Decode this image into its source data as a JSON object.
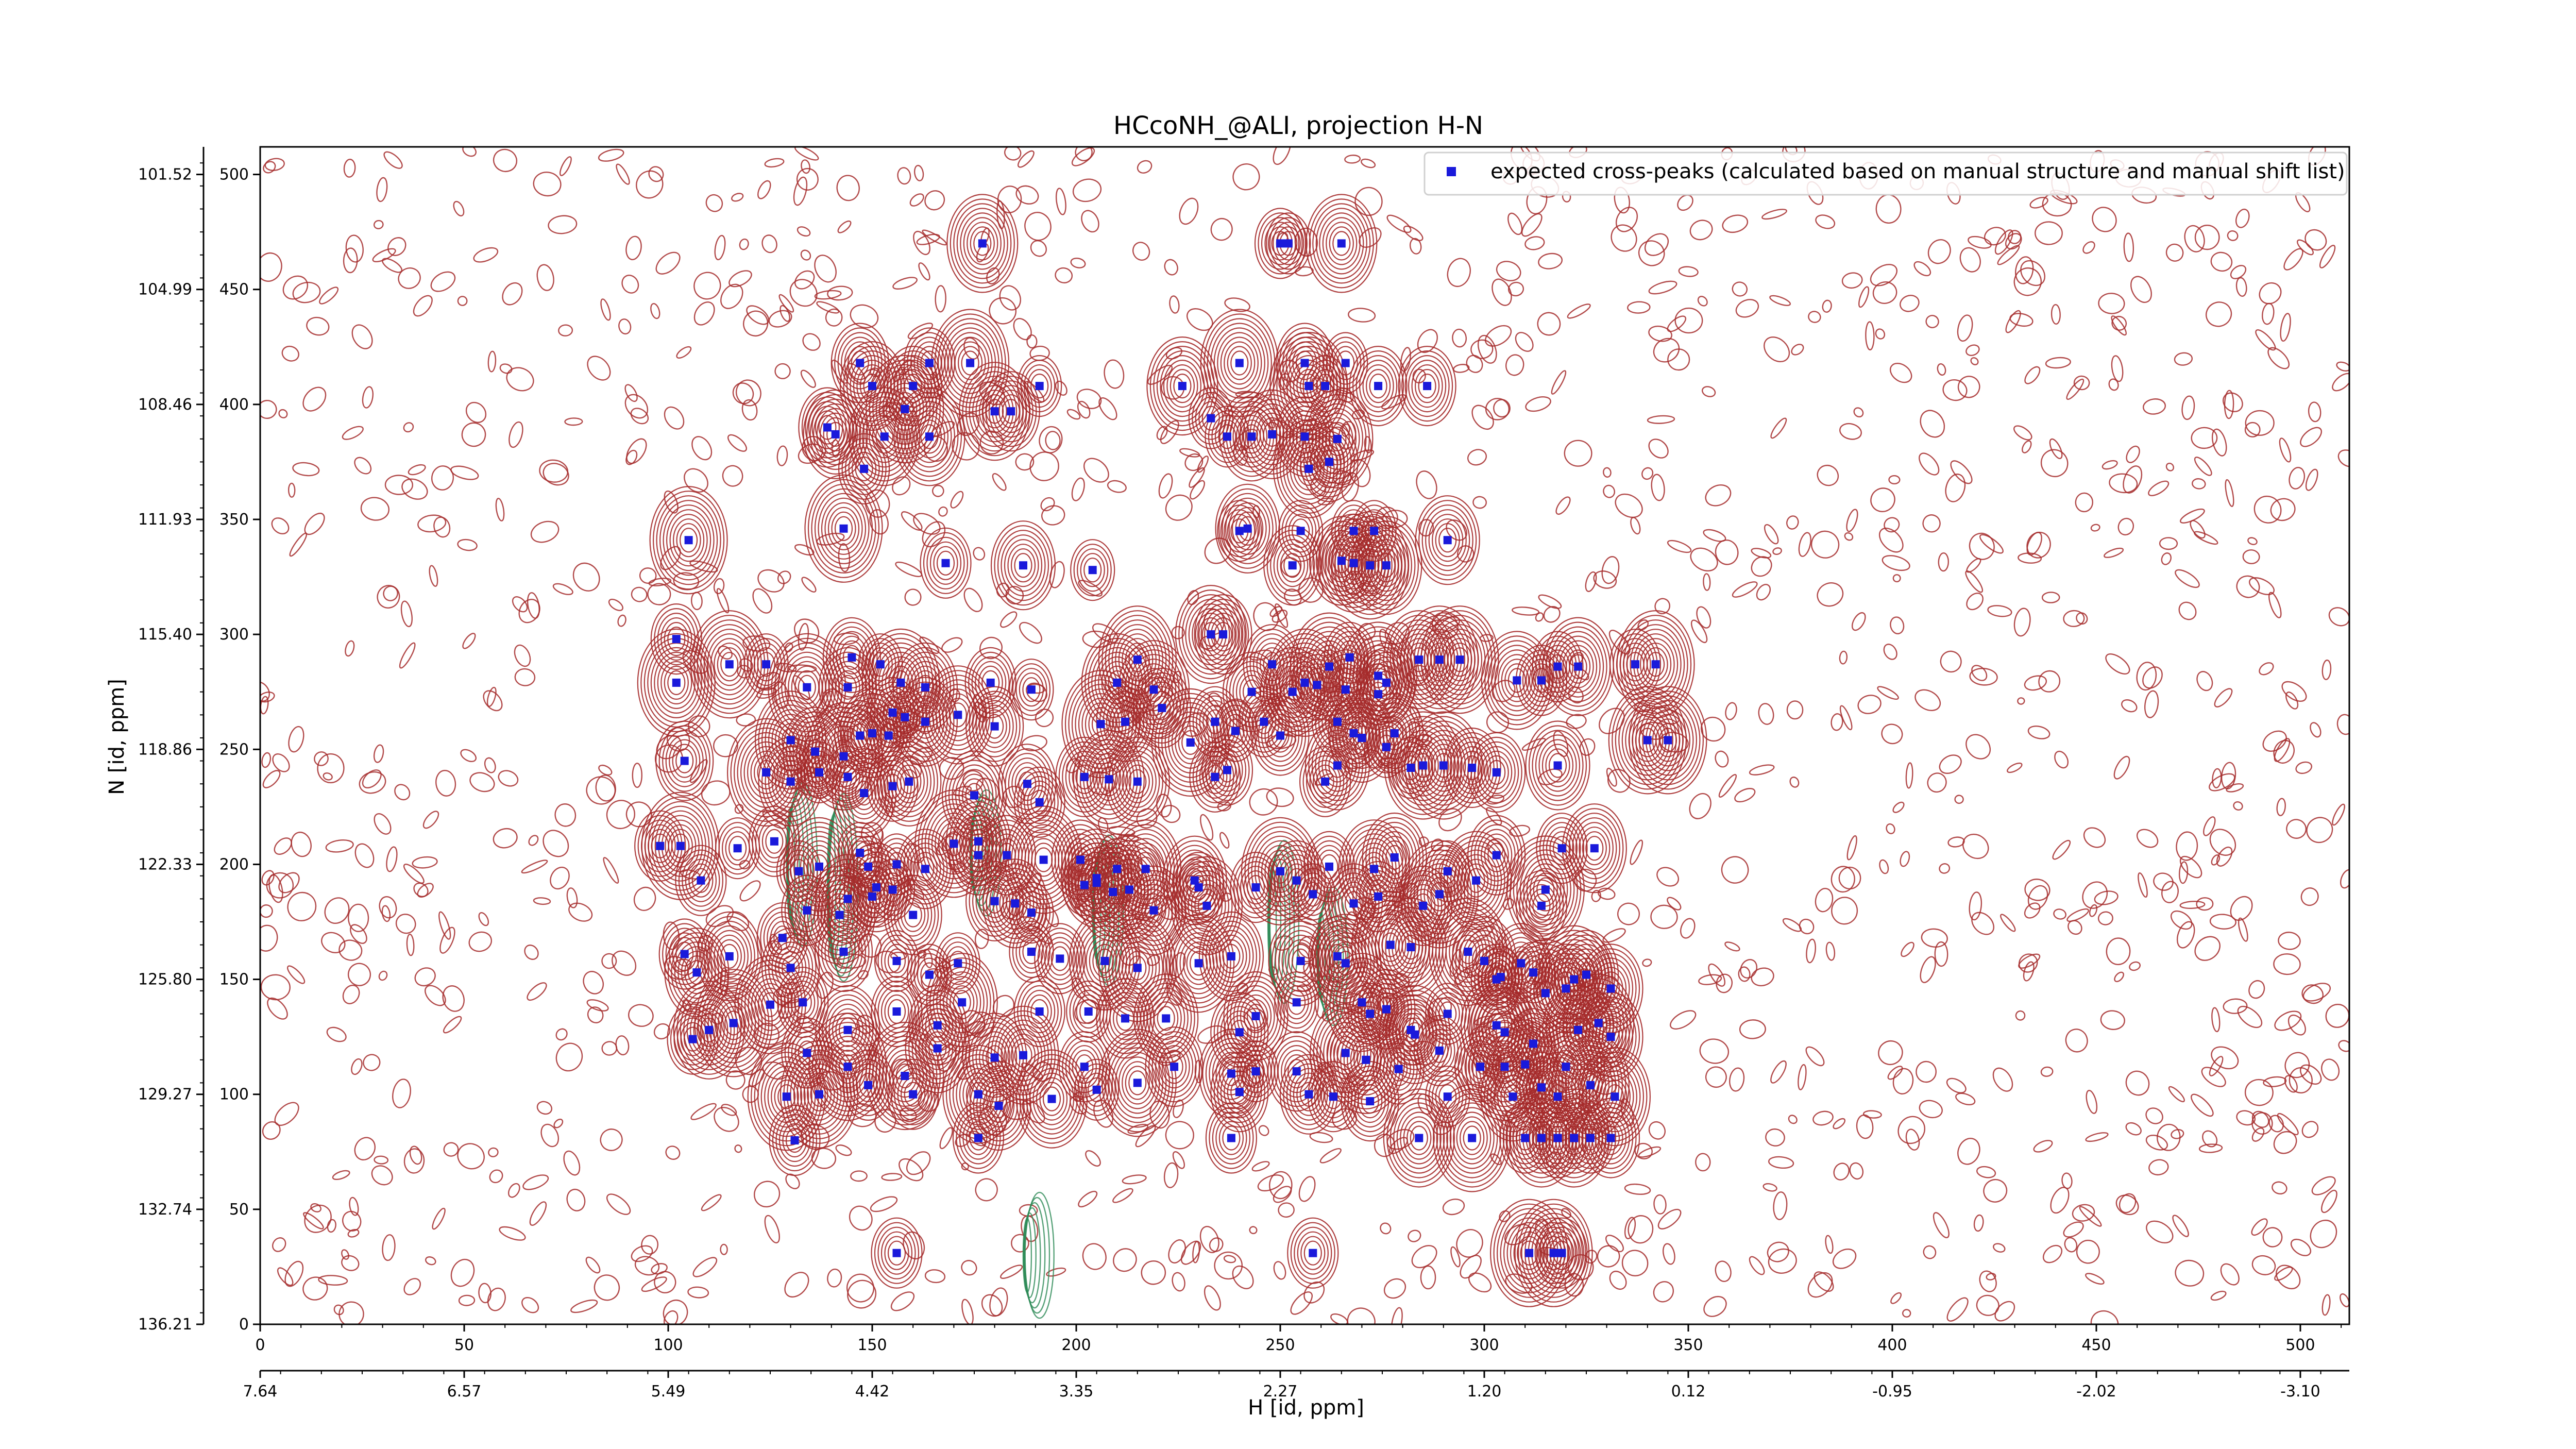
{
  "chart_data": {
    "type": "scatter",
    "title": "HCcoNH_@ALI, projection H-N",
    "xlabel": "H [id, ppm]",
    "ylabel": "N [id, ppm]",
    "xlim": [
      0,
      512
    ],
    "ylim": [
      0,
      512
    ],
    "x_ticks": [
      0,
      50,
      100,
      150,
      200,
      250,
      300,
      350,
      400,
      450,
      500
    ],
    "y_ticks": [
      0,
      50,
      100,
      150,
      200,
      250,
      300,
      350,
      400,
      450,
      500
    ],
    "ppm_x_ticks": [
      "7.64",
      "6.57",
      "5.49",
      "4.42",
      "3.35",
      "2.27",
      "1.20",
      "0.12",
      "-0.95",
      "-2.02",
      "-3.10"
    ],
    "ppm_y_ticks": [
      "136.21",
      "132.74",
      "129.27",
      "125.80",
      "122.33",
      "118.86",
      "115.40",
      "111.93",
      "108.46",
      "104.99",
      "101.52"
    ],
    "ppm_x_positions": [
      0,
      50,
      100,
      150,
      200,
      250,
      300,
      350,
      400,
      450,
      500
    ],
    "ppm_y_positions": [
      0,
      50,
      100,
      150,
      200,
      250,
      300,
      350,
      400,
      450,
      500
    ],
    "legend": {
      "position": "top-right",
      "label": "expected cross-peaks (calculated based on manual structure and manual shift list)",
      "marker_color": "#1a1adb"
    },
    "colors": {
      "positive_contours": "#a52a2a",
      "negative_contours": "#2e8b57",
      "markers": "#1a1adb"
    },
    "grid": false,
    "series": [
      {
        "name": "expected cross-peaks (calculated based on manual structure and manual shift list)",
        "points": [
          [
            177,
            470
          ],
          [
            250,
            470
          ],
          [
            252,
            470
          ],
          [
            265,
            470
          ],
          [
            147,
            418
          ],
          [
            164,
            418
          ],
          [
            174,
            418
          ],
          [
            240,
            418
          ],
          [
            256,
            418
          ],
          [
            266,
            418
          ],
          [
            150,
            408
          ],
          [
            160,
            408
          ],
          [
            191,
            408
          ],
          [
            226,
            408
          ],
          [
            257,
            408
          ],
          [
            261,
            408
          ],
          [
            274,
            408
          ],
          [
            286,
            408
          ],
          [
            158,
            398
          ],
          [
            180,
            397
          ],
          [
            184,
            397
          ],
          [
            233,
            394
          ],
          [
            139,
            390
          ],
          [
            141,
            387
          ],
          [
            153,
            386
          ],
          [
            164,
            386
          ],
          [
            237,
            386
          ],
          [
            243,
            386
          ],
          [
            248,
            387
          ],
          [
            256,
            386
          ],
          [
            264,
            385
          ],
          [
            148,
            372
          ],
          [
            257,
            372
          ],
          [
            262,
            375
          ],
          [
            143,
            346
          ],
          [
            105,
            341
          ],
          [
            168,
            331
          ],
          [
            187,
            330
          ],
          [
            204,
            328
          ],
          [
            253,
            330
          ],
          [
            265,
            332
          ],
          [
            268,
            331
          ],
          [
            272,
            330
          ],
          [
            276,
            330
          ],
          [
            240,
            345
          ],
          [
            242,
            346
          ],
          [
            255,
            345
          ],
          [
            268,
            345
          ],
          [
            273,
            345
          ],
          [
            291,
            341
          ],
          [
            233,
            300
          ],
          [
            236,
            300
          ],
          [
            102,
            298
          ],
          [
            102,
            279
          ],
          [
            115,
            287
          ],
          [
            124,
            287
          ],
          [
            134,
            277
          ],
          [
            144,
            277
          ],
          [
            145,
            290
          ],
          [
            152,
            287
          ],
          [
            157,
            279
          ],
          [
            163,
            277
          ],
          [
            179,
            279
          ],
          [
            189,
            276
          ],
          [
            210,
            279
          ],
          [
            215,
            289
          ],
          [
            219,
            276
          ],
          [
            243,
            275
          ],
          [
            248,
            287
          ],
          [
            253,
            275
          ],
          [
            256,
            279
          ],
          [
            259,
            278
          ],
          [
            262,
            286
          ],
          [
            266,
            276
          ],
          [
            267,
            290
          ],
          [
            274,
            274
          ],
          [
            274,
            282
          ],
          [
            276,
            279
          ],
          [
            284,
            289
          ],
          [
            289,
            289
          ],
          [
            294,
            289
          ],
          [
            308,
            280
          ],
          [
            314,
            280
          ],
          [
            318,
            286
          ],
          [
            323,
            286
          ],
          [
            337,
            287
          ],
          [
            342,
            287
          ],
          [
            104,
            245
          ],
          [
            130,
            254
          ],
          [
            136,
            249
          ],
          [
            143,
            247
          ],
          [
            147,
            256
          ],
          [
            150,
            257
          ],
          [
            154,
            256
          ],
          [
            155,
            266
          ],
          [
            158,
            264
          ],
          [
            163,
            262
          ],
          [
            171,
            265
          ],
          [
            180,
            260
          ],
          [
            206,
            261
          ],
          [
            212,
            262
          ],
          [
            221,
            268
          ],
          [
            228,
            253
          ],
          [
            234,
            262
          ],
          [
            239,
            258
          ],
          [
            246,
            262
          ],
          [
            250,
            256
          ],
          [
            264,
            262
          ],
          [
            268,
            257
          ],
          [
            270,
            255
          ],
          [
            276,
            251
          ],
          [
            278,
            257
          ],
          [
            282,
            242
          ],
          [
            285,
            243
          ],
          [
            290,
            243
          ],
          [
            297,
            242
          ],
          [
            303,
            240
          ],
          [
            318,
            243
          ],
          [
            340,
            254
          ],
          [
            345,
            254
          ],
          [
            124,
            240
          ],
          [
            130,
            236
          ],
          [
            137,
            240
          ],
          [
            144,
            238
          ],
          [
            148,
            231
          ],
          [
            155,
            234
          ],
          [
            159,
            236
          ],
          [
            175,
            230
          ],
          [
            188,
            235
          ],
          [
            191,
            227
          ],
          [
            202,
            238
          ],
          [
            208,
            237
          ],
          [
            215,
            236
          ],
          [
            234,
            238
          ],
          [
            237,
            241
          ],
          [
            261,
            236
          ],
          [
            264,
            243
          ],
          [
            98,
            208
          ],
          [
            103,
            208
          ],
          [
            108,
            193
          ],
          [
            117,
            207
          ],
          [
            126,
            210
          ],
          [
            132,
            197
          ],
          [
            137,
            199
          ],
          [
            147,
            205
          ],
          [
            149,
            199
          ],
          [
            156,
            200
          ],
          [
            163,
            198
          ],
          [
            170,
            209
          ],
          [
            176,
            204
          ],
          [
            176,
            210
          ],
          [
            183,
            204
          ],
          [
            192,
            202
          ],
          [
            201,
            202
          ],
          [
            205,
            192
          ],
          [
            210,
            198
          ],
          [
            217,
            198
          ],
          [
            229,
            193
          ],
          [
            250,
            197
          ],
          [
            254,
            193
          ],
          [
            262,
            199
          ],
          [
            273,
            198
          ],
          [
            278,
            203
          ],
          [
            291,
            197
          ],
          [
            298,
            193
          ],
          [
            303,
            204
          ],
          [
            314,
            182
          ],
          [
            315,
            189
          ],
          [
            319,
            207
          ],
          [
            327,
            207
          ],
          [
            134,
            180
          ],
          [
            142,
            178
          ],
          [
            144,
            185
          ],
          [
            150,
            186
          ],
          [
            151,
            190
          ],
          [
            155,
            189
          ],
          [
            160,
            178
          ],
          [
            180,
            184
          ],
          [
            185,
            183
          ],
          [
            189,
            179
          ],
          [
            202,
            191
          ],
          [
            205,
            194
          ],
          [
            209,
            188
          ],
          [
            213,
            189
          ],
          [
            219,
            180
          ],
          [
            230,
            190
          ],
          [
            232,
            182
          ],
          [
            244,
            190
          ],
          [
            258,
            187
          ],
          [
            268,
            183
          ],
          [
            274,
            186
          ],
          [
            285,
            182
          ],
          [
            289,
            187
          ],
          [
            104,
            161
          ],
          [
            107,
            153
          ],
          [
            115,
            160
          ],
          [
            128,
            168
          ],
          [
            130,
            155
          ],
          [
            143,
            162
          ],
          [
            156,
            158
          ],
          [
            164,
            152
          ],
          [
            171,
            157
          ],
          [
            189,
            162
          ],
          [
            196,
            159
          ],
          [
            207,
            158
          ],
          [
            215,
            155
          ],
          [
            230,
            157
          ],
          [
            238,
            160
          ],
          [
            255,
            158
          ],
          [
            264,
            160
          ],
          [
            266,
            157
          ],
          [
            277,
            165
          ],
          [
            282,
            164
          ],
          [
            296,
            162
          ],
          [
            300,
            158
          ],
          [
            303,
            150
          ],
          [
            304,
            151
          ],
          [
            309,
            157
          ],
          [
            312,
            153
          ],
          [
            315,
            144
          ],
          [
            320,
            146
          ],
          [
            322,
            150
          ],
          [
            325,
            152
          ],
          [
            331,
            146
          ],
          [
            106,
            124
          ],
          [
            110,
            128
          ],
          [
            116,
            131
          ],
          [
            125,
            139
          ],
          [
            133,
            140
          ],
          [
            144,
            128
          ],
          [
            156,
            136
          ],
          [
            166,
            130
          ],
          [
            172,
            140
          ],
          [
            191,
            136
          ],
          [
            203,
            136
          ],
          [
            212,
            133
          ],
          [
            222,
            133
          ],
          [
            240,
            127
          ],
          [
            244,
            134
          ],
          [
            254,
            140
          ],
          [
            270,
            140
          ],
          [
            272,
            135
          ],
          [
            276,
            137
          ],
          [
            282,
            128
          ],
          [
            283,
            126
          ],
          [
            291,
            135
          ],
          [
            303,
            130
          ],
          [
            305,
            127
          ],
          [
            312,
            122
          ],
          [
            323,
            128
          ],
          [
            328,
            131
          ],
          [
            331,
            125
          ],
          [
            134,
            118
          ],
          [
            144,
            112
          ],
          [
            158,
            108
          ],
          [
            166,
            120
          ],
          [
            180,
            116
          ],
          [
            187,
            117
          ],
          [
            202,
            112
          ],
          [
            224,
            112
          ],
          [
            238,
            109
          ],
          [
            244,
            110
          ],
          [
            254,
            110
          ],
          [
            266,
            118
          ],
          [
            271,
            115
          ],
          [
            279,
            111
          ],
          [
            289,
            119
          ],
          [
            299,
            112
          ],
          [
            305,
            112
          ],
          [
            310,
            113
          ],
          [
            320,
            112
          ],
          [
            129,
            99
          ],
          [
            137,
            100
          ],
          [
            149,
            104
          ],
          [
            160,
            100
          ],
          [
            176,
            100
          ],
          [
            181,
            95
          ],
          [
            194,
            98
          ],
          [
            205,
            102
          ],
          [
            215,
            105
          ],
          [
            240,
            101
          ],
          [
            257,
            100
          ],
          [
            263,
            99
          ],
          [
            272,
            97
          ],
          [
            291,
            99
          ],
          [
            307,
            99
          ],
          [
            314,
            103
          ],
          [
            318,
            99
          ],
          [
            326,
            104
          ],
          [
            332,
            99
          ],
          [
            131,
            80
          ],
          [
            176,
            81
          ],
          [
            238,
            81
          ],
          [
            284,
            81
          ],
          [
            297,
            81
          ],
          [
            310,
            81
          ],
          [
            314,
            81
          ],
          [
            318,
            81
          ],
          [
            322,
            81
          ],
          [
            326,
            81
          ],
          [
            331,
            81
          ],
          [
            156,
            31
          ],
          [
            258,
            31
          ],
          [
            311,
            31
          ],
          [
            317,
            31
          ],
          [
            319,
            31
          ]
        ]
      }
    ]
  }
}
